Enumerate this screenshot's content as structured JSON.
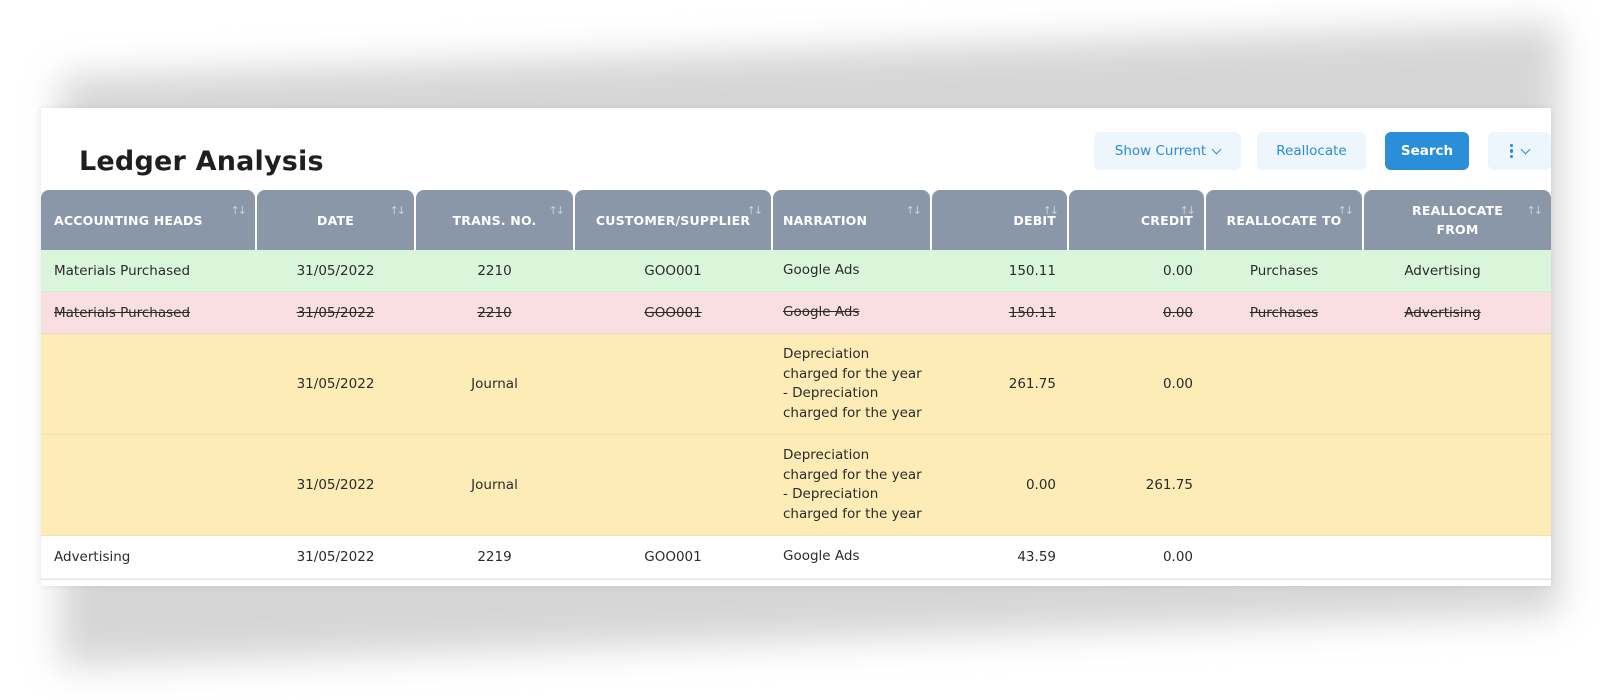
{
  "page": {
    "title": "Ledger Analysis"
  },
  "toolbar": {
    "show_current_label": "Show Current",
    "reallocate_label": "Reallocate",
    "search_label": "Search"
  },
  "colors": {
    "header_bg": "#8a97a8",
    "row_green": "#d9f5da",
    "row_red": "#f9dfdf",
    "row_yellow": "#fdecb5",
    "row_white": "#ffffff",
    "primary": "#2b8ed8"
  },
  "table": {
    "columns": [
      "ACCOUNTING HEADS",
      "DATE",
      "TRANS. NO.",
      "CUSTOMER/SUPPLIER",
      "NARRATION",
      "DEBIT",
      "CREDIT",
      "REALLOCATE TO",
      "REALLOCATE FROM"
    ],
    "rows": [
      {
        "style": "green",
        "cells": [
          "Materials Purchased",
          "31/05/2022",
          "2210",
          "GOO001",
          "Google Ads",
          "150.11",
          "0.00",
          "Purchases",
          "Advertising"
        ]
      },
      {
        "style": "red-strike",
        "cells": [
          "Materials Purchased",
          "31/05/2022",
          "2210",
          "GOO001",
          "Google Ads",
          "150.11",
          "0.00",
          "Purchases",
          "Advertising"
        ]
      },
      {
        "style": "yellow",
        "cells": [
          "",
          "31/05/2022",
          "Journal",
          "",
          "Depreciation charged for the year - Depreciation charged for the year",
          "261.75",
          "0.00",
          "",
          ""
        ]
      },
      {
        "style": "yellow",
        "cells": [
          "",
          "31/05/2022",
          "Journal",
          "",
          "Depreciation charged for the year - Depreciation charged for the year",
          "0.00",
          "261.75",
          "",
          ""
        ]
      },
      {
        "style": "white",
        "cells": [
          "Advertising",
          "31/05/2022",
          "2219",
          "GOO001",
          "Google Ads",
          "43.59",
          "0.00",
          "",
          ""
        ]
      }
    ]
  }
}
